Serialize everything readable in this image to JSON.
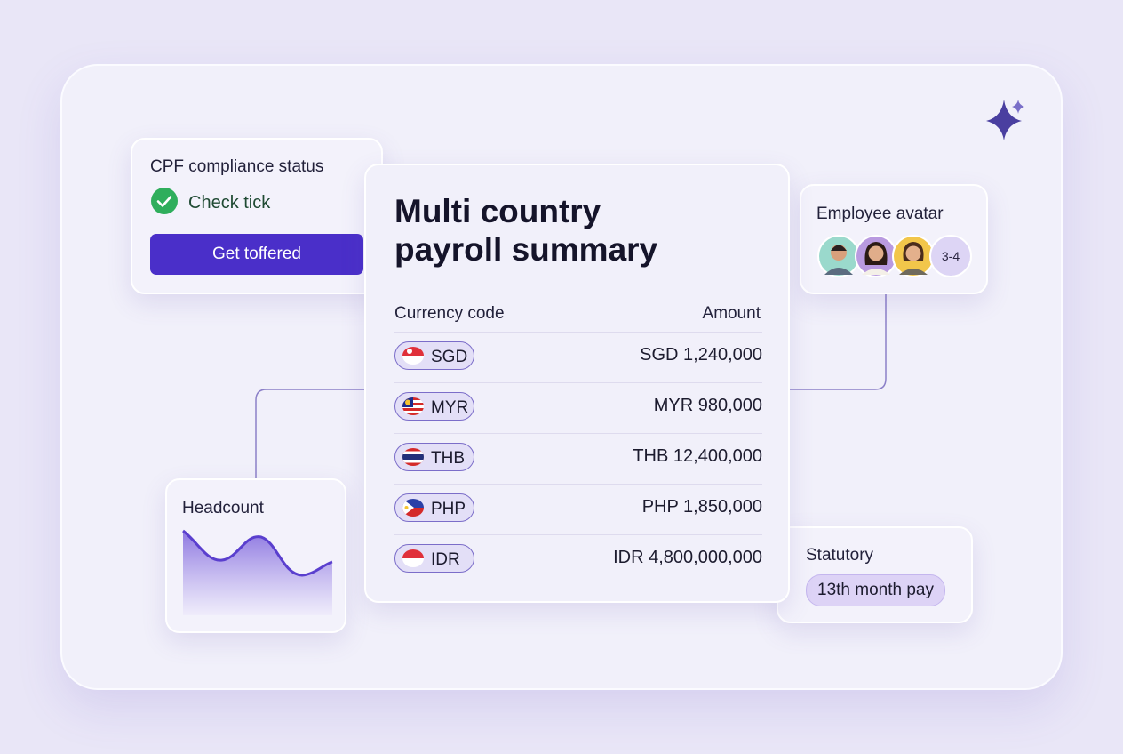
{
  "cards": {
    "compliance": {
      "title": "CPF compliance status",
      "status": "Check tick",
      "button": "Get toffered"
    },
    "summary": {
      "title": "Multi country payroll summary",
      "columns": [
        "Currency code",
        "Amount"
      ],
      "rows": [
        [
          "SGD",
          "SGD 1,240,000"
        ],
        [
          "MYR",
          "MYR 980,000"
        ],
        [
          "THB",
          "THB 12,400,000"
        ],
        [
          "PHP",
          "PHP 1,850,000"
        ],
        [
          "IDR",
          "IDR 4,800,000,000"
        ]
      ]
    },
    "avatars": {
      "title": "Employee avatar",
      "more": "3-4"
    },
    "headcount": {
      "title": "Headcount"
    },
    "statutory": {
      "title": "Statutory",
      "tag": "13th month pay"
    }
  }
}
